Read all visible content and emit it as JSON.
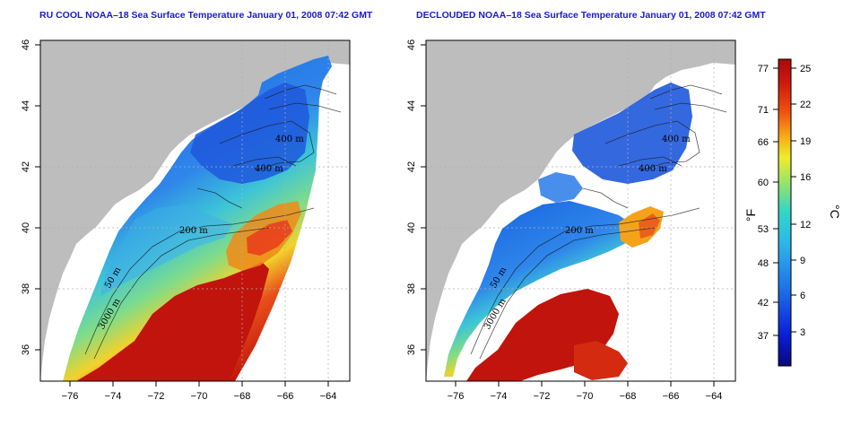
{
  "titles": {
    "left": "RU COOL NOAA–18 Sea Surface Temperature January 01, 2008 07:42 GMT",
    "right": "DECLOUDED NOAA–18 Sea Surface Temperature January 01, 2008 07:42 GMT"
  },
  "axes": {
    "x_ticks": [
      "−76",
      "−74",
      "−72",
      "−70",
      "−68",
      "−66",
      "−64"
    ],
    "y_ticks": [
      "36",
      "38",
      "40",
      "42",
      "44",
      "46"
    ]
  },
  "contour_labels": {
    "left": [
      "400 m",
      "400 m",
      "200 m",
      "50 m",
      "3000 m"
    ],
    "right": [
      "400 m",
      "400 m",
      "200 m",
      "50 m",
      "3000 m"
    ]
  },
  "colorbar": {
    "fahrenheit_label": "°F",
    "celsius_label": "°C",
    "fahrenheit_ticks": [
      "77",
      "71",
      "66",
      "60",
      "53",
      "48",
      "42",
      "37"
    ],
    "celsius_ticks": [
      "25",
      "22",
      "19",
      "16",
      "12",
      "9",
      "6",
      "3"
    ],
    "range_c": [
      0,
      26
    ]
  },
  "colors": {
    "land": "#bdbdbd",
    "title": "#1a1acc",
    "warm": "#c0140c",
    "cold": "#1a3fd8"
  }
}
